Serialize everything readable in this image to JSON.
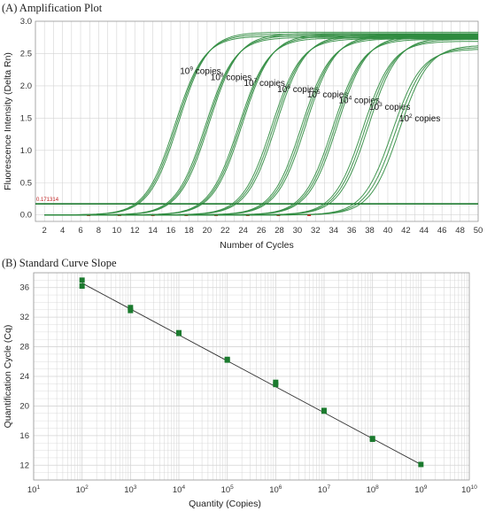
{
  "panel_a_title": "(A) Amplification Plot",
  "panel_b_title": "(B) Standard Curve Slope",
  "colors": {
    "curve": "#2e8b3e",
    "threshold": "#1f7a30",
    "marker": "#1b7a2e",
    "fit_line": "#333333",
    "grid": "#d4d4d4",
    "baseline_mark": "#cc2222"
  },
  "chart_data": [
    {
      "type": "line",
      "title": "(A) Amplification Plot",
      "xlabel": "Number of Cycles",
      "ylabel": "Fluorescence Intensity (Delta Rn)",
      "xlim": [
        1,
        50
      ],
      "ylim": [
        -0.1,
        3.0
      ],
      "xticks": [
        2,
        4,
        6,
        8,
        10,
        12,
        14,
        16,
        18,
        20,
        22,
        24,
        26,
        28,
        30,
        32,
        34,
        36,
        38,
        40,
        42,
        44,
        46,
        48,
        50
      ],
      "yticks": [
        0.0,
        0.5,
        1.0,
        1.5,
        2.0,
        2.5,
        3.0
      ],
      "grid": true,
      "threshold": 0.171314,
      "threshold_label": "0.171314",
      "series": [
        {
          "label_base": "10",
          "label_exp": "9",
          "label_suffix": " copies",
          "ct": 12.2,
          "plateau": 2.8,
          "replicate_offsets": [
            -0.2,
            0.0,
            0.2
          ]
        },
        {
          "label_base": "10",
          "label_exp": "8",
          "label_suffix": " copies",
          "ct": 15.6,
          "plateau": 2.78,
          "replicate_offsets": [
            -0.2,
            0.0,
            0.2
          ]
        },
        {
          "label_base": "10",
          "label_exp": "7",
          "label_suffix": " copies",
          "ct": 19.3,
          "plateau": 2.77,
          "replicate_offsets": [
            -0.2,
            0.0,
            0.2
          ]
        },
        {
          "label_base": "10",
          "label_exp": "6",
          "label_suffix": " copies",
          "ct": 23.0,
          "plateau": 2.76,
          "replicate_offsets": [
            -0.25,
            0.0,
            0.25
          ]
        },
        {
          "label_base": "10",
          "label_exp": "5",
          "label_suffix": " copies",
          "ct": 26.3,
          "plateau": 2.76,
          "replicate_offsets": [
            -0.25,
            0.0,
            0.25
          ]
        },
        {
          "label_base": "10",
          "label_exp": "4",
          "label_suffix": " copies",
          "ct": 29.8,
          "plateau": 2.75,
          "replicate_offsets": [
            -0.25,
            0.0,
            0.25
          ]
        },
        {
          "label_base": "10",
          "label_exp": "3",
          "label_suffix": " copies",
          "ct": 33.2,
          "plateau": 2.72,
          "replicate_offsets": [
            -0.3,
            0.0,
            0.3
          ]
        },
        {
          "label_base": "10",
          "label_exp": "2",
          "label_suffix": " copies",
          "ct": 36.6,
          "plateau": 2.6,
          "replicate_offsets": [
            -0.4,
            0.0,
            0.4
          ]
        }
      ]
    },
    {
      "type": "scatter",
      "title": "(B) Standard Curve Slope",
      "xlabel": "Quantity (Copies)",
      "ylabel": "Quantification Cycle (Cq)",
      "x_scale": "log",
      "xlim": [
        10,
        10000000000
      ],
      "ylim": [
        10,
        38
      ],
      "ymajor": [
        12,
        16,
        20,
        24,
        28,
        32,
        36
      ],
      "x_tick_labels": [
        {
          "base": "10",
          "exp": "1"
        },
        {
          "base": "10",
          "exp": "2"
        },
        {
          "base": "10",
          "exp": "3"
        },
        {
          "base": "10",
          "exp": "4"
        },
        {
          "base": "10",
          "exp": "5"
        },
        {
          "base": "10",
          "exp": "6"
        },
        {
          "base": "10",
          "exp": "7"
        },
        {
          "base": "10",
          "exp": "8"
        },
        {
          "base": "10",
          "exp": "9"
        },
        {
          "base": "10",
          "exp": "10"
        }
      ],
      "grid": true,
      "points": [
        {
          "x": 100,
          "y": 37.0
        },
        {
          "x": 100,
          "y": 36.2
        },
        {
          "x": 1000,
          "y": 33.3
        },
        {
          "x": 1000,
          "y": 32.9
        },
        {
          "x": 10000,
          "y": 29.9
        },
        {
          "x": 10000,
          "y": 29.8
        },
        {
          "x": 100000,
          "y": 26.3
        },
        {
          "x": 100000,
          "y": 26.2
        },
        {
          "x": 1000000,
          "y": 23.2
        },
        {
          "x": 1000000,
          "y": 22.9
        },
        {
          "x": 10000000,
          "y": 19.4
        },
        {
          "x": 10000000,
          "y": 19.3
        },
        {
          "x": 100000000,
          "y": 15.6
        },
        {
          "x": 100000000,
          "y": 15.5
        },
        {
          "x": 1000000000,
          "y": 12.1
        }
      ],
      "fit_line": {
        "x": [
          100,
          1000000000
        ],
        "y": [
          36.6,
          12.1
        ]
      }
    }
  ]
}
